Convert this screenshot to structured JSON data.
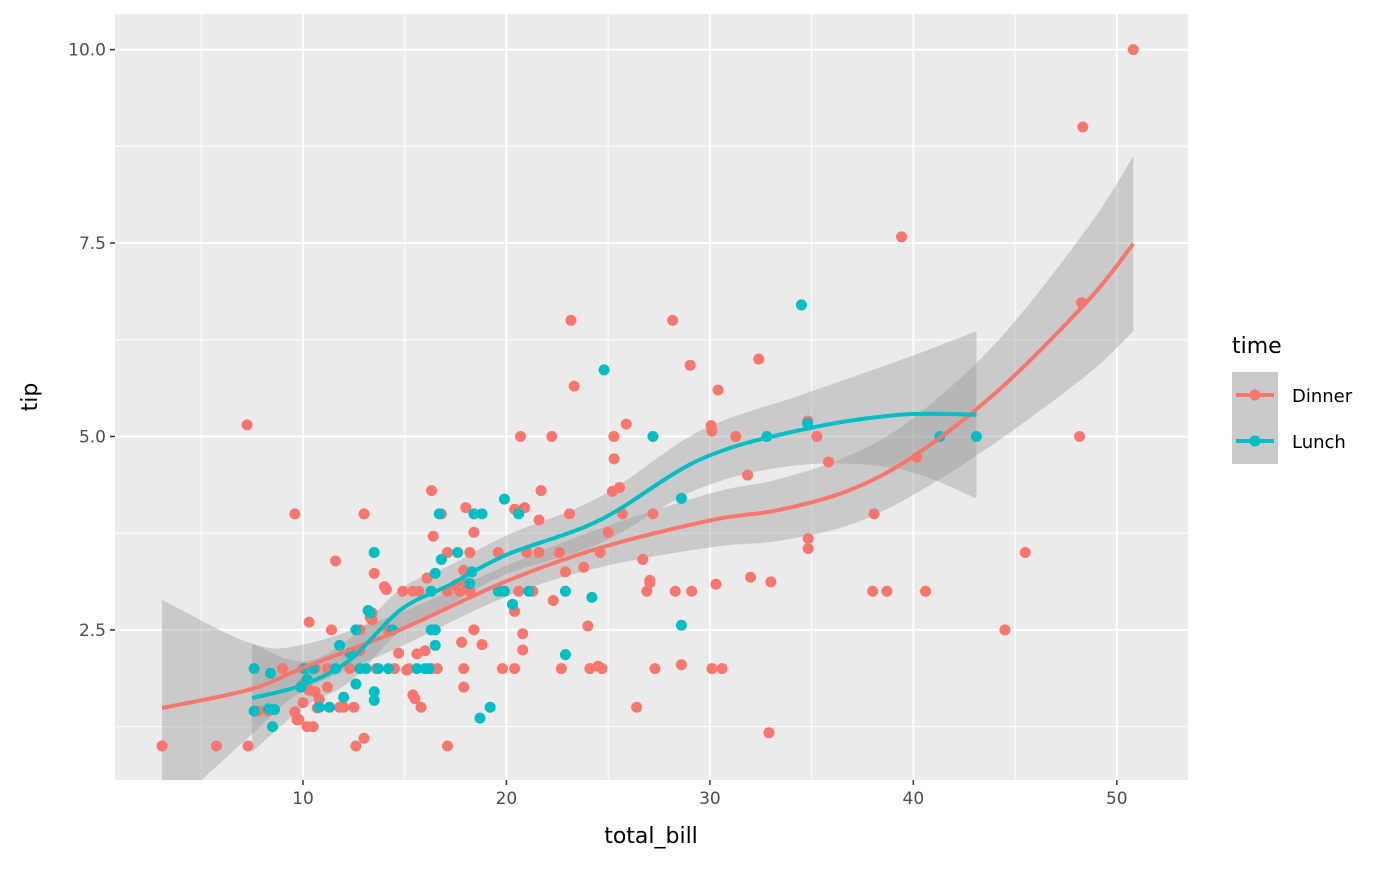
{
  "chart_data": {
    "type": "scatter",
    "title": "",
    "xlabel": "total_bill",
    "ylabel": "tip",
    "xlim": [
      0.76,
      53.5
    ],
    "ylim": [
      0.56,
      10.46
    ],
    "x_ticks": [
      10,
      20,
      30,
      40,
      50
    ],
    "x_tick_labels": [
      "10",
      "20",
      "30",
      "40",
      "50"
    ],
    "y_ticks": [
      2.5,
      5.0,
      7.5,
      10.0
    ],
    "y_tick_labels": [
      "2.5",
      "5.0",
      "7.5",
      "10.0"
    ],
    "grid": true,
    "legend": {
      "title": "time",
      "position": "right",
      "entries": [
        "Dinner",
        "Lunch"
      ]
    },
    "colors": {
      "Dinner": "#F8766D",
      "Lunch": "#00BFC4",
      "panel": "#EBEBEB",
      "band": "#999999"
    },
    "series": [
      {
        "name": "Dinner",
        "points": [
          [
            50.81,
            10
          ],
          [
            48.33,
            9
          ],
          [
            39.42,
            7.58
          ],
          [
            48.27,
            6.73
          ],
          [
            23.17,
            6.5
          ],
          [
            28.17,
            6.5
          ],
          [
            32.4,
            6
          ],
          [
            29.03,
            5.92
          ],
          [
            23.33,
            5.65
          ],
          [
            30.4,
            5.6
          ],
          [
            7.25,
            5.15
          ],
          [
            25.89,
            5.16
          ],
          [
            34.81,
            5.2
          ],
          [
            30.06,
            5.14
          ],
          [
            30.1,
            5.07
          ],
          [
            20.69,
            5
          ],
          [
            22.23,
            5
          ],
          [
            25.28,
            5
          ],
          [
            31.27,
            5
          ],
          [
            35.26,
            5
          ],
          [
            48.17,
            5
          ],
          [
            25.29,
            4.71
          ],
          [
            40.17,
            4.73
          ],
          [
            35.83,
            4.67
          ],
          [
            31.85,
            4.5
          ],
          [
            25.56,
            4.34
          ],
          [
            25.21,
            4.29
          ],
          [
            16.32,
            4.3
          ],
          [
            21.7,
            4.3
          ],
          [
            9.6,
            4
          ],
          [
            13.0,
            4
          ],
          [
            16.8,
            4
          ],
          [
            23.1,
            4
          ],
          [
            25.7,
            4
          ],
          [
            27.2,
            4
          ],
          [
            38.07,
            4
          ],
          [
            18.0,
            4.08
          ],
          [
            20.4,
            4.06
          ],
          [
            20.9,
            4.08
          ],
          [
            21.6,
            3.92
          ],
          [
            25.0,
            3.76
          ],
          [
            18.4,
            3.76
          ],
          [
            34.83,
            3.68
          ],
          [
            34.83,
            3.55
          ],
          [
            17.1,
            3.5
          ],
          [
            18.2,
            3.5
          ],
          [
            19.6,
            3.5
          ],
          [
            21.0,
            3.5
          ],
          [
            21.6,
            3.5
          ],
          [
            22.6,
            3.5
          ],
          [
            24.6,
            3.5
          ],
          [
            45.5,
            3.5
          ],
          [
            11.6,
            3.39
          ],
          [
            26.7,
            3.41
          ],
          [
            16.4,
            3.71
          ],
          [
            23.8,
            3.31
          ],
          [
            17.9,
            3.27
          ],
          [
            22.9,
            3.25
          ],
          [
            13.5,
            3.23
          ],
          [
            27.05,
            3.14
          ],
          [
            27.05,
            3.11
          ],
          [
            32.0,
            3.18
          ],
          [
            33.0,
            3.12
          ],
          [
            30.3,
            3.09
          ],
          [
            14.0,
            3.06
          ],
          [
            14.1,
            3.02
          ],
          [
            14.9,
            3.0
          ],
          [
            15.4,
            3
          ],
          [
            15.7,
            3
          ],
          [
            17.1,
            3
          ],
          [
            17.7,
            3
          ],
          [
            18.2,
            3
          ],
          [
            19.7,
            3
          ],
          [
            20.6,
            3
          ],
          [
            21.3,
            3
          ],
          [
            26.9,
            3
          ],
          [
            28.3,
            3
          ],
          [
            29.1,
            3
          ],
          [
            38.0,
            3
          ],
          [
            38.7,
            3
          ],
          [
            40.6,
            3
          ],
          [
            16.1,
            3.17
          ],
          [
            17.5,
            3.08
          ],
          [
            18.0,
            3.09
          ],
          [
            20.3,
            2.83
          ],
          [
            20.4,
            2.74
          ],
          [
            22.3,
            2.88
          ],
          [
            44.5,
            2.5
          ],
          [
            11.4,
            2.5
          ],
          [
            12.8,
            2.5
          ],
          [
            14.2,
            2.5
          ],
          [
            18.4,
            2.5
          ],
          [
            20.8,
            2.45
          ],
          [
            24.0,
            2.55
          ],
          [
            10.3,
            2.6
          ],
          [
            13.4,
            2.63
          ],
          [
            13.4,
            2.72
          ],
          [
            13.3,
            2.66
          ],
          [
            17.8,
            2.34
          ],
          [
            18.8,
            2.31
          ],
          [
            20.8,
            2.24
          ],
          [
            14.7,
            2.2
          ],
          [
            15.6,
            2.19
          ],
          [
            16.0,
            2.23
          ],
          [
            12.8,
            2.23
          ],
          [
            17.9,
            2
          ],
          [
            16.6,
            2
          ],
          [
            16.3,
            2
          ],
          [
            15.2,
            2
          ],
          [
            14.5,
            2
          ],
          [
            13.6,
            2
          ],
          [
            12.3,
            2
          ],
          [
            11.2,
            2
          ],
          [
            10.6,
            2
          ],
          [
            9.0,
            2
          ],
          [
            10.0,
            2
          ],
          [
            19.8,
            2
          ],
          [
            20.4,
            2
          ],
          [
            22.7,
            2
          ],
          [
            24.1,
            2
          ],
          [
            24.5,
            2.03
          ],
          [
            24.7,
            2
          ],
          [
            27.3,
            2
          ],
          [
            30.1,
            2
          ],
          [
            30.6,
            2
          ],
          [
            15.1,
            1.98
          ],
          [
            28.6,
            2.05
          ],
          [
            10.0,
            1.8
          ],
          [
            11.2,
            1.76
          ],
          [
            10.6,
            1.7
          ],
          [
            10.3,
            1.72
          ],
          [
            17.9,
            1.76
          ],
          [
            15.4,
            1.66
          ],
          [
            15.5,
            1.61
          ],
          [
            10.8,
            1.6
          ],
          [
            10.0,
            1.56
          ],
          [
            10.7,
            1.49
          ],
          [
            12.0,
            1.5
          ],
          [
            11.8,
            1.5
          ],
          [
            12.5,
            1.5
          ],
          [
            15.8,
            1.5
          ],
          [
            26.4,
            1.5
          ],
          [
            8.3,
            1.45
          ],
          [
            7.8,
            1.45
          ],
          [
            9.6,
            1.44
          ],
          [
            9.8,
            1.34
          ],
          [
            9.7,
            1.34
          ],
          [
            10.2,
            1.25
          ],
          [
            10.5,
            1.25
          ],
          [
            13.0,
            1.1
          ],
          [
            32.9,
            1.17
          ],
          [
            3.07,
            1
          ],
          [
            5.75,
            1
          ],
          [
            7.3,
            1
          ],
          [
            12.6,
            1
          ],
          [
            17.1,
            1
          ]
        ],
        "smooth": {
          "x": [
            3.07,
            7.4,
            10,
            14.76,
            20,
            24.6,
            30.1,
            33.4,
            36.9,
            40.1,
            44.2,
            48.6,
            50.81
          ],
          "y": [
            1.49,
            1.73,
            2.01,
            2.5,
            3.13,
            3.56,
            3.92,
            4.05,
            4.31,
            4.76,
            5.6,
            6.76,
            7.49
          ],
          "se": [
            1.4,
            0.6,
            0.3,
            0.22,
            0.2,
            0.25,
            0.35,
            0.4,
            0.45,
            0.5,
            0.65,
            0.95,
            1.13
          ]
        }
      },
      {
        "name": "Lunch",
        "points": [
          [
            34.5,
            6.7
          ],
          [
            24.8,
            5.86
          ],
          [
            27.2,
            5
          ],
          [
            32.8,
            5
          ],
          [
            41.3,
            5
          ],
          [
            43.1,
            5
          ],
          [
            34.8,
            5.17
          ],
          [
            28.6,
            4.2
          ],
          [
            19.9,
            4.19
          ],
          [
            16.7,
            4
          ],
          [
            18.4,
            4
          ],
          [
            18.8,
            4
          ],
          [
            20.6,
            4
          ],
          [
            13.5,
            3.5
          ],
          [
            17.6,
            3.5
          ],
          [
            16.8,
            3.41
          ],
          [
            16.5,
            3.23
          ],
          [
            18.3,
            3.25
          ],
          [
            19.9,
            3
          ],
          [
            19.6,
            3
          ],
          [
            21.1,
            3
          ],
          [
            22.9,
            3
          ],
          [
            16.3,
            3
          ],
          [
            18.2,
            3.1
          ],
          [
            20.3,
            2.83
          ],
          [
            13.2,
            2.75
          ],
          [
            13.3,
            2.72
          ],
          [
            24.2,
            2.92
          ],
          [
            28.6,
            2.56
          ],
          [
            14.4,
            2.5
          ],
          [
            16.3,
            2.5
          ],
          [
            16.5,
            2.5
          ],
          [
            12.6,
            2.5
          ],
          [
            11.8,
            2.3
          ],
          [
            16.5,
            2.3
          ],
          [
            12.3,
            2.2
          ],
          [
            22.9,
            2.18
          ],
          [
            7.6,
            2.0
          ],
          [
            10.1,
            2
          ],
          [
            10.5,
            2
          ],
          [
            11.6,
            2
          ],
          [
            12.8,
            2
          ],
          [
            13.1,
            2
          ],
          [
            13.7,
            2
          ],
          [
            14.2,
            2
          ],
          [
            15.6,
            2
          ],
          [
            16.0,
            2
          ],
          [
            16.2,
            2
          ],
          [
            8.4,
            1.94
          ],
          [
            9.9,
            1.76
          ],
          [
            10.2,
            1.86
          ],
          [
            12.6,
            1.8
          ],
          [
            13.5,
            1.7
          ],
          [
            13.5,
            1.59
          ],
          [
            12.0,
            1.63
          ],
          [
            10.8,
            1.5
          ],
          [
            11.3,
            1.5
          ],
          [
            19.2,
            1.5
          ],
          [
            7.6,
            1.45
          ],
          [
            8.3,
            1.48
          ],
          [
            8.6,
            1.47
          ],
          [
            18.7,
            1.36
          ],
          [
            8.5,
            1.25
          ]
        ],
        "smooth": {
          "x": [
            7.5,
            10,
            12.3,
            14.8,
            17.2,
            20,
            24.6,
            29.5,
            34.4,
            39.3,
            43.1
          ],
          "y": [
            1.62,
            1.79,
            2.11,
            2.76,
            3.08,
            3.47,
            3.92,
            4.7,
            5.08,
            5.28,
            5.28
          ],
          "se": [
            0.7,
            0.3,
            0.28,
            0.27,
            0.25,
            0.25,
            0.3,
            0.37,
            0.45,
            0.7,
            1.08
          ]
        }
      }
    ]
  }
}
